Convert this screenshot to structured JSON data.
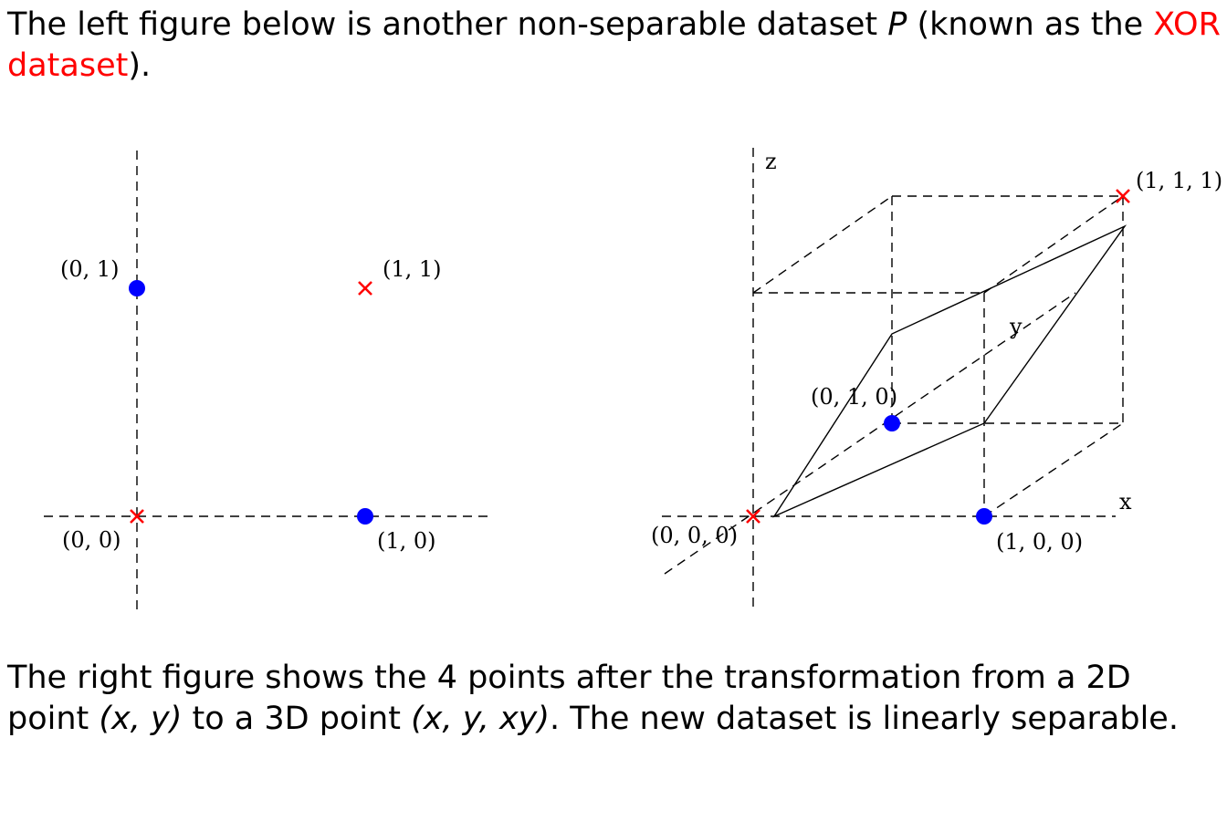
{
  "intro": {
    "part1": "The left figure below is another non-separable dataset ",
    "symbol": "P",
    "part2": " (known as the ",
    "highlight": "XOR dataset",
    "part3": ")."
  },
  "left_figure": {
    "points": [
      {
        "label": "(0, 0)",
        "class": "x"
      },
      {
        "label": "(0, 1)",
        "class": "o"
      },
      {
        "label": "(1, 0)",
        "class": "o"
      },
      {
        "label": "(1, 1)",
        "class": "x"
      }
    ]
  },
  "right_figure": {
    "axis_labels": {
      "x": "x",
      "y": "y",
      "z": "z"
    },
    "points": [
      {
        "label": "(0, 0, 0)",
        "class": "x"
      },
      {
        "label": "(0, 1, 0)",
        "class": "o"
      },
      {
        "label": "(1, 0, 0)",
        "class": "o"
      },
      {
        "label": "(1, 1, 1)",
        "class": "x"
      }
    ]
  },
  "outro": {
    "part1": "The right figure shows the 4 points after the transformation from a 2D point ",
    "expr1": "(x, y)",
    "part2": " to a 3D point ",
    "expr2": "(x, y, xy)",
    "part3": ". The new dataset is linearly separable."
  },
  "colors": {
    "cross": "#ff0000",
    "dot": "#0000ff",
    "highlight": "#ff0000"
  }
}
